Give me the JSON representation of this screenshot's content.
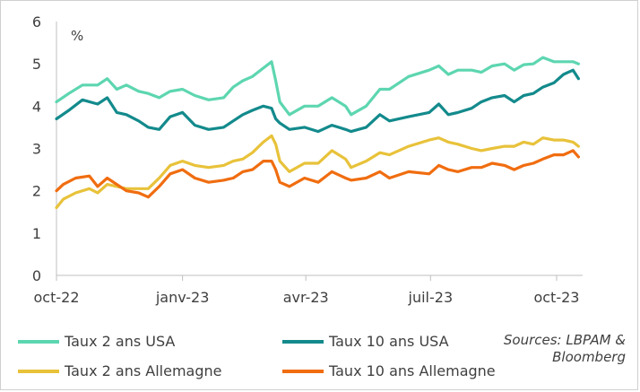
{
  "source": {
    "line1": "Sources: LBPAM &",
    "line2": "Bloomberg"
  },
  "chart_data": {
    "type": "line",
    "title": "",
    "unit_label": "%",
    "xlabel": "",
    "ylabel": "",
    "ylim": [
      0,
      6
    ],
    "yticks": [
      "0",
      "1",
      "2",
      "3",
      "4",
      "5",
      "6"
    ],
    "xlim": [
      "2022-10-01",
      "2023-10-20"
    ],
    "xticks": [
      {
        "date": "2022-10-01",
        "label": "oct-22"
      },
      {
        "date": "2023-01-01",
        "label": "janv-23"
      },
      {
        "date": "2023-04-01",
        "label": "avr-23"
      },
      {
        "date": "2023-07-01",
        "label": "juil-23"
      },
      {
        "date": "2023-10-01",
        "label": "oct-23"
      }
    ],
    "grid": false,
    "legend_position": "bottom",
    "series": [
      {
        "name": "Taux 2 ans USA",
        "color": "#5dd6b0",
        "points": [
          [
            "2022-10-01",
            4.1
          ],
          [
            "2022-10-10",
            4.3
          ],
          [
            "2022-10-20",
            4.5
          ],
          [
            "2022-10-31",
            4.5
          ],
          [
            "2022-11-07",
            4.65
          ],
          [
            "2022-11-14",
            4.4
          ],
          [
            "2022-11-21",
            4.5
          ],
          [
            "2022-11-30",
            4.35
          ],
          [
            "2022-12-07",
            4.3
          ],
          [
            "2022-12-15",
            4.2
          ],
          [
            "2022-12-23",
            4.35
          ],
          [
            "2023-01-01",
            4.4
          ],
          [
            "2023-01-10",
            4.25
          ],
          [
            "2023-01-20",
            4.15
          ],
          [
            "2023-01-31",
            4.2
          ],
          [
            "2023-02-07",
            4.45
          ],
          [
            "2023-02-14",
            4.6
          ],
          [
            "2023-02-21",
            4.7
          ],
          [
            "2023-03-01",
            4.9
          ],
          [
            "2023-03-07",
            5.05
          ],
          [
            "2023-03-10",
            4.6
          ],
          [
            "2023-03-13",
            4.1
          ],
          [
            "2023-03-20",
            3.8
          ],
          [
            "2023-03-31",
            4.0
          ],
          [
            "2023-04-10",
            4.0
          ],
          [
            "2023-04-20",
            4.2
          ],
          [
            "2023-04-30",
            4.0
          ],
          [
            "2023-05-04",
            3.8
          ],
          [
            "2023-05-15",
            4.0
          ],
          [
            "2023-05-25",
            4.4
          ],
          [
            "2023-06-01",
            4.4
          ],
          [
            "2023-06-15",
            4.7
          ],
          [
            "2023-06-30",
            4.85
          ],
          [
            "2023-07-07",
            4.95
          ],
          [
            "2023-07-14",
            4.75
          ],
          [
            "2023-07-21",
            4.85
          ],
          [
            "2023-07-31",
            4.85
          ],
          [
            "2023-08-07",
            4.8
          ],
          [
            "2023-08-15",
            4.95
          ],
          [
            "2023-08-24",
            5.0
          ],
          [
            "2023-08-31",
            4.85
          ],
          [
            "2023-09-07",
            4.98
          ],
          [
            "2023-09-14",
            5.0
          ],
          [
            "2023-09-21",
            5.15
          ],
          [
            "2023-09-29",
            5.05
          ],
          [
            "2023-10-06",
            5.05
          ],
          [
            "2023-10-13",
            5.05
          ],
          [
            "2023-10-17",
            5.0
          ]
        ]
      },
      {
        "name": "Taux 10 ans USA",
        "color": "#138a8c",
        "points": [
          [
            "2022-10-01",
            3.7
          ],
          [
            "2022-10-10",
            3.9
          ],
          [
            "2022-10-20",
            4.15
          ],
          [
            "2022-10-31",
            4.05
          ],
          [
            "2022-11-07",
            4.2
          ],
          [
            "2022-11-14",
            3.85
          ],
          [
            "2022-11-21",
            3.8
          ],
          [
            "2022-11-30",
            3.65
          ],
          [
            "2022-12-07",
            3.5
          ],
          [
            "2022-12-15",
            3.45
          ],
          [
            "2022-12-23",
            3.75
          ],
          [
            "2023-01-01",
            3.85
          ],
          [
            "2023-01-10",
            3.55
          ],
          [
            "2023-01-20",
            3.45
          ],
          [
            "2023-01-31",
            3.5
          ],
          [
            "2023-02-07",
            3.65
          ],
          [
            "2023-02-14",
            3.8
          ],
          [
            "2023-02-21",
            3.9
          ],
          [
            "2023-03-01",
            4.0
          ],
          [
            "2023-03-07",
            3.95
          ],
          [
            "2023-03-10",
            3.7
          ],
          [
            "2023-03-13",
            3.6
          ],
          [
            "2023-03-20",
            3.45
          ],
          [
            "2023-03-31",
            3.5
          ],
          [
            "2023-04-10",
            3.4
          ],
          [
            "2023-04-20",
            3.55
          ],
          [
            "2023-04-30",
            3.45
          ],
          [
            "2023-05-04",
            3.4
          ],
          [
            "2023-05-15",
            3.5
          ],
          [
            "2023-05-25",
            3.8
          ],
          [
            "2023-06-01",
            3.65
          ],
          [
            "2023-06-15",
            3.75
          ],
          [
            "2023-06-30",
            3.85
          ],
          [
            "2023-07-07",
            4.05
          ],
          [
            "2023-07-14",
            3.8
          ],
          [
            "2023-07-21",
            3.85
          ],
          [
            "2023-07-31",
            3.95
          ],
          [
            "2023-08-07",
            4.1
          ],
          [
            "2023-08-15",
            4.2
          ],
          [
            "2023-08-24",
            4.25
          ],
          [
            "2023-08-31",
            4.1
          ],
          [
            "2023-09-07",
            4.25
          ],
          [
            "2023-09-14",
            4.3
          ],
          [
            "2023-09-21",
            4.45
          ],
          [
            "2023-09-29",
            4.55
          ],
          [
            "2023-10-06",
            4.75
          ],
          [
            "2023-10-13",
            4.85
          ],
          [
            "2023-10-17",
            4.65
          ]
        ]
      },
      {
        "name": "Taux 2 ans Allemagne",
        "color": "#e8c23a",
        "points": [
          [
            "2022-10-01",
            1.6
          ],
          [
            "2022-10-06",
            1.8
          ],
          [
            "2022-10-15",
            1.95
          ],
          [
            "2022-10-25",
            2.05
          ],
          [
            "2022-10-31",
            1.95
          ],
          [
            "2022-11-07",
            2.15
          ],
          [
            "2022-11-14",
            2.1
          ],
          [
            "2022-11-21",
            2.05
          ],
          [
            "2022-11-30",
            2.05
          ],
          [
            "2022-12-07",
            2.05
          ],
          [
            "2022-12-15",
            2.3
          ],
          [
            "2022-12-23",
            2.6
          ],
          [
            "2023-01-01",
            2.7
          ],
          [
            "2023-01-10",
            2.6
          ],
          [
            "2023-01-20",
            2.55
          ],
          [
            "2023-01-31",
            2.6
          ],
          [
            "2023-02-07",
            2.7
          ],
          [
            "2023-02-14",
            2.75
          ],
          [
            "2023-02-21",
            2.9
          ],
          [
            "2023-03-01",
            3.15
          ],
          [
            "2023-03-07",
            3.3
          ],
          [
            "2023-03-10",
            3.1
          ],
          [
            "2023-03-13",
            2.7
          ],
          [
            "2023-03-20",
            2.45
          ],
          [
            "2023-03-31",
            2.65
          ],
          [
            "2023-04-10",
            2.65
          ],
          [
            "2023-04-20",
            2.95
          ],
          [
            "2023-04-30",
            2.75
          ],
          [
            "2023-05-04",
            2.55
          ],
          [
            "2023-05-15",
            2.7
          ],
          [
            "2023-05-25",
            2.9
          ],
          [
            "2023-06-01",
            2.85
          ],
          [
            "2023-06-15",
            3.05
          ],
          [
            "2023-06-30",
            3.2
          ],
          [
            "2023-07-07",
            3.25
          ],
          [
            "2023-07-14",
            3.15
          ],
          [
            "2023-07-21",
            3.1
          ],
          [
            "2023-07-31",
            3.0
          ],
          [
            "2023-08-07",
            2.95
          ],
          [
            "2023-08-15",
            3.0
          ],
          [
            "2023-08-24",
            3.05
          ],
          [
            "2023-08-31",
            3.05
          ],
          [
            "2023-09-07",
            3.15
          ],
          [
            "2023-09-14",
            3.1
          ],
          [
            "2023-09-21",
            3.25
          ],
          [
            "2023-09-29",
            3.2
          ],
          [
            "2023-10-06",
            3.2
          ],
          [
            "2023-10-13",
            3.15
          ],
          [
            "2023-10-17",
            3.05
          ]
        ]
      },
      {
        "name": "Taux 10 ans Allemagne",
        "color": "#f06d10",
        "points": [
          [
            "2022-10-01",
            2.0
          ],
          [
            "2022-10-06",
            2.15
          ],
          [
            "2022-10-15",
            2.3
          ],
          [
            "2022-10-25",
            2.35
          ],
          [
            "2022-10-31",
            2.1
          ],
          [
            "2022-11-07",
            2.3
          ],
          [
            "2022-11-14",
            2.15
          ],
          [
            "2022-11-21",
            2.0
          ],
          [
            "2022-11-30",
            1.95
          ],
          [
            "2022-12-07",
            1.85
          ],
          [
            "2022-12-15",
            2.1
          ],
          [
            "2022-12-23",
            2.4
          ],
          [
            "2023-01-01",
            2.5
          ],
          [
            "2023-01-10",
            2.3
          ],
          [
            "2023-01-20",
            2.2
          ],
          [
            "2023-01-31",
            2.25
          ],
          [
            "2023-02-07",
            2.3
          ],
          [
            "2023-02-14",
            2.45
          ],
          [
            "2023-02-21",
            2.5
          ],
          [
            "2023-03-01",
            2.7
          ],
          [
            "2023-03-07",
            2.7
          ],
          [
            "2023-03-10",
            2.5
          ],
          [
            "2023-03-13",
            2.2
          ],
          [
            "2023-03-20",
            2.1
          ],
          [
            "2023-03-31",
            2.3
          ],
          [
            "2023-04-10",
            2.2
          ],
          [
            "2023-04-20",
            2.45
          ],
          [
            "2023-04-30",
            2.3
          ],
          [
            "2023-05-04",
            2.25
          ],
          [
            "2023-05-15",
            2.3
          ],
          [
            "2023-05-25",
            2.45
          ],
          [
            "2023-06-01",
            2.3
          ],
          [
            "2023-06-15",
            2.45
          ],
          [
            "2023-06-30",
            2.4
          ],
          [
            "2023-07-07",
            2.6
          ],
          [
            "2023-07-14",
            2.5
          ],
          [
            "2023-07-21",
            2.45
          ],
          [
            "2023-07-31",
            2.55
          ],
          [
            "2023-08-07",
            2.55
          ],
          [
            "2023-08-15",
            2.65
          ],
          [
            "2023-08-24",
            2.6
          ],
          [
            "2023-08-31",
            2.5
          ],
          [
            "2023-09-07",
            2.6
          ],
          [
            "2023-09-14",
            2.65
          ],
          [
            "2023-09-21",
            2.75
          ],
          [
            "2023-09-29",
            2.85
          ],
          [
            "2023-10-06",
            2.85
          ],
          [
            "2023-10-13",
            2.95
          ],
          [
            "2023-10-17",
            2.8
          ]
        ]
      }
    ]
  }
}
